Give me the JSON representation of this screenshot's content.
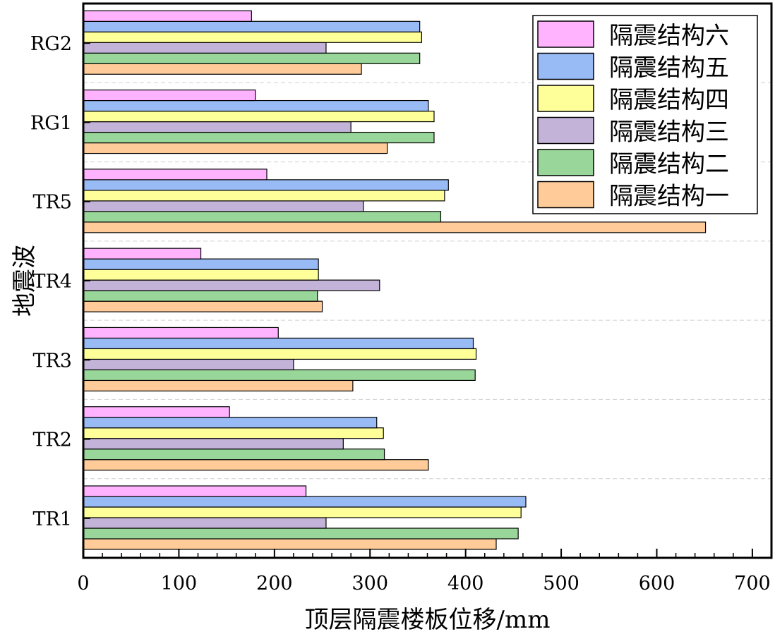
{
  "chart_data": {
    "type": "bar",
    "orientation": "horizontal",
    "title": "",
    "xlabel": "顶层隔震楼板位移/mm",
    "ylabel": "地震波",
    "xlim": [
      0,
      720
    ],
    "xticks": [
      0,
      100,
      200,
      300,
      400,
      500,
      600,
      700
    ],
    "categories": [
      "TR1",
      "TR2",
      "TR3",
      "TR4",
      "TR5",
      "RG1",
      "RG2"
    ],
    "legend_position": "top-right",
    "grid": "horizontal-dashed",
    "series": [
      {
        "name": "隔震结构一",
        "color": "#FFCC99",
        "values": [
          432,
          361,
          282,
          250,
          651,
          318,
          291
        ]
      },
      {
        "name": "隔震结构二",
        "color": "#99D699",
        "values": [
          455,
          315,
          410,
          245,
          374,
          367,
          352
        ]
      },
      {
        "name": "隔震结构三",
        "color": "#C3B3D9",
        "values": [
          254,
          272,
          220,
          310,
          293,
          280,
          254
        ]
      },
      {
        "name": "隔震结构四",
        "color": "#FFFF99",
        "values": [
          458,
          314,
          411,
          246,
          378,
          367,
          354
        ]
      },
      {
        "name": "隔震结构五",
        "color": "#99BBF5",
        "values": [
          463,
          307,
          408,
          246,
          382,
          361,
          352
        ]
      },
      {
        "name": "隔震结构六",
        "color": "#FFB3FF",
        "values": [
          233,
          153,
          204,
          123,
          192,
          180,
          176
        ]
      }
    ]
  }
}
